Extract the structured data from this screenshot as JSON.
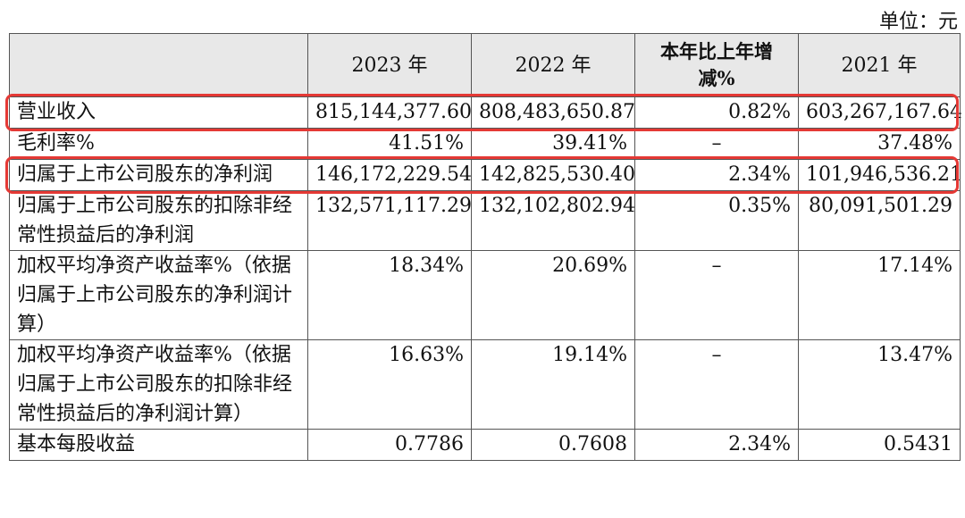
{
  "unit_label": "单位：元",
  "highlight_color": "#e53935",
  "columns": [
    "2023 年",
    "2022 年",
    "本年比上年增减%",
    "2021 年"
  ],
  "rows": [
    {
      "label": "营业收入",
      "values": [
        "815,144,377.60",
        "808,483,650.87",
        "0.82%",
        "603,267,167.64"
      ]
    },
    {
      "label": "毛利率%",
      "values": [
        "41.51%",
        "39.41%",
        "–",
        "37.48%"
      ]
    },
    {
      "label": "归属于上市公司股东的净利润",
      "values": [
        "146,172,229.54",
        "142,825,530.40",
        "2.34%",
        "101,946,536.21"
      ]
    },
    {
      "label": "归属于上市公司股东的扣除非经常性损益后的净利润",
      "values": [
        "132,571,117.29",
        "132,102,802.94",
        "0.35%",
        "80,091,501.29"
      ]
    },
    {
      "label": "加权平均净资产收益率%（依据归属于上市公司股东的净利润计算）",
      "values": [
        "18.34%",
        "20.69%",
        "–",
        "17.14%"
      ]
    },
    {
      "label": "加权平均净资产收益率%（依据归属于上市公司股东的扣除非经常性损益后的净利润计算）",
      "values": [
        "16.63%",
        "19.14%",
        "–",
        "13.47%"
      ]
    },
    {
      "label": "基本每股收益",
      "values": [
        "0.7786",
        "0.7608",
        "2.34%",
        "0.5431"
      ]
    }
  ]
}
